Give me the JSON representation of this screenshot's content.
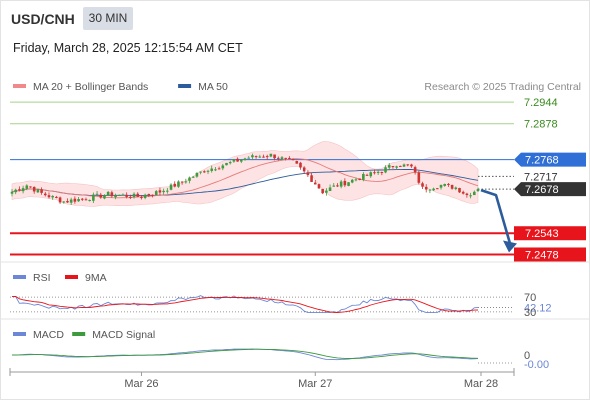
{
  "header": {
    "symbol": "USD/CNH",
    "timeframe": "30 MIN",
    "timestamp": "Friday, March 28, 2025 12:15:54 AM CET"
  },
  "legend": [
    {
      "label": "MA 20 + Bollinger Bands",
      "color": "#f08a8a"
    },
    {
      "label": "MA 50",
      "color": "#2d5c9c"
    }
  ],
  "credit": "Research © 2025 Trading Central",
  "colors": {
    "resistance": "#a9d18e",
    "support": "#e8141b",
    "pivot": "#2f6fd6",
    "price_tag": "#333333",
    "band_fill": "#fde3e3",
    "candle_up": "#3f9b3f",
    "candle_down": "#cc3333",
    "arrow": "#2d5c9c",
    "rsi": "#6b87d6",
    "nine_ma": "#e8141b",
    "macd": "#6b87d6",
    "macd_signal": "#3e9a3e"
  },
  "chart_data": [
    {
      "type": "candlestick",
      "ylim": [
        7.2455,
        7.2975
      ],
      "x_tick_labels": [
        "Mar 26",
        "Mar 27",
        "Mar 28"
      ],
      "levels": [
        {
          "label": "7.2944",
          "value": 7.2944,
          "kind": "resistance"
        },
        {
          "label": "7.2878",
          "value": 7.2878,
          "kind": "resistance"
        },
        {
          "label": "7.2768",
          "value": 7.2768,
          "kind": "pivot"
        },
        {
          "label": "7.2717",
          "value": 7.2717,
          "kind": "plain"
        },
        {
          "label": "7.2678",
          "value": 7.2678,
          "kind": "last"
        },
        {
          "label": "7.2543",
          "value": 7.2543,
          "kind": "support"
        },
        {
          "label": "7.2478",
          "value": 7.2478,
          "kind": "support"
        }
      ],
      "close_anchors": [
        [
          0,
          7.267
        ],
        [
          4,
          7.269
        ],
        [
          8,
          7.2665
        ],
        [
          14,
          7.264
        ],
        [
          20,
          7.265
        ],
        [
          26,
          7.2662
        ],
        [
          34,
          7.2655
        ],
        [
          40,
          7.267
        ],
        [
          46,
          7.27
        ],
        [
          52,
          7.2735
        ],
        [
          58,
          7.2755
        ],
        [
          64,
          7.2775
        ],
        [
          70,
          7.2782
        ],
        [
          76,
          7.276
        ],
        [
          80,
          7.272
        ],
        [
          84,
          7.267
        ],
        [
          88,
          7.269
        ],
        [
          92,
          7.2705
        ],
        [
          96,
          7.272
        ],
        [
          100,
          7.2735
        ],
        [
          104,
          7.2755
        ],
        [
          108,
          7.2745
        ],
        [
          111,
          7.268
        ],
        [
          116,
          7.269
        ],
        [
          120,
          7.2683
        ],
        [
          123,
          7.266
        ],
        [
          126,
          7.2678
        ]
      ],
      "forecast": {
        "from": 7.2678,
        "to": 7.2478
      }
    },
    {
      "type": "line",
      "series": [
        {
          "name": "RSI"
        },
        {
          "name": "9MA"
        }
      ],
      "levels": [
        {
          "label": "70",
          "value": 70
        },
        {
          "label": "42.12",
          "value": 42.12
        },
        {
          "label": "30",
          "value": 30
        }
      ],
      "ylim": [
        0,
        100
      ]
    },
    {
      "type": "line",
      "series": [
        {
          "name": "MACD"
        },
        {
          "name": "MACD Signal"
        }
      ],
      "levels": [
        {
          "label": "0",
          "value": 0
        },
        {
          "label": "-0.00",
          "value": 0
        }
      ]
    }
  ]
}
